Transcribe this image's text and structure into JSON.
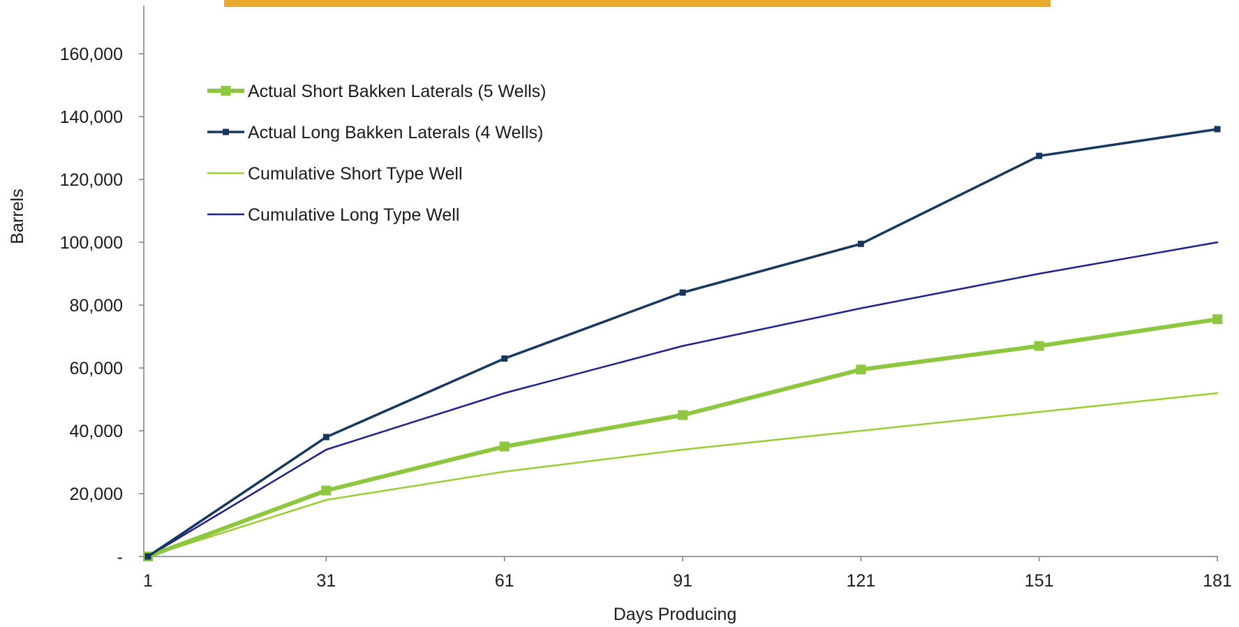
{
  "banner_color": "#e9a92e",
  "chart_data": {
    "type": "line",
    "title": "",
    "xlabel": "Days Producing",
    "ylabel": "Barrels",
    "x": [
      1,
      31,
      61,
      91,
      121,
      151,
      181
    ],
    "x_tick_labels": [
      "1",
      "31",
      "61",
      "91",
      "121",
      "151",
      "181"
    ],
    "ylim": [
      0,
      170000
    ],
    "y_ticks": [
      0,
      20000,
      40000,
      60000,
      80000,
      100000,
      120000,
      140000,
      160000
    ],
    "y_tick_labels": [
      "-",
      "20,000",
      "40,000",
      "60,000",
      "80,000",
      "100,000",
      "120,000",
      "140,000",
      "160,000"
    ],
    "grid": false,
    "legend_position": "top-left",
    "series": [
      {
        "name": "Actual Short Bakken Laterals (5 Wells)",
        "values": [
          0,
          21000,
          35000,
          45000,
          59500,
          67000,
          75500
        ],
        "color": "#8dc63f",
        "marker": "square-large",
        "line_style": "thick"
      },
      {
        "name": "Actual Long Bakken Laterals (4 Wells)",
        "values": [
          0,
          38000,
          63000,
          84000,
          99500,
          127500,
          136000
        ],
        "color": "#17375e",
        "marker": "square-small",
        "line_style": "medium"
      },
      {
        "name": "Cumulative Short Type Well",
        "values": [
          0,
          18000,
          27000,
          34000,
          40000,
          46000,
          52000
        ],
        "color": "#9acd32",
        "marker": "none",
        "line_style": "thin"
      },
      {
        "name": "Cumulative Long Type Well",
        "values": [
          0,
          34000,
          52000,
          67000,
          79000,
          90000,
          100000
        ],
        "color": "#1f1f8f",
        "marker": "none",
        "line_style": "thin"
      }
    ]
  }
}
